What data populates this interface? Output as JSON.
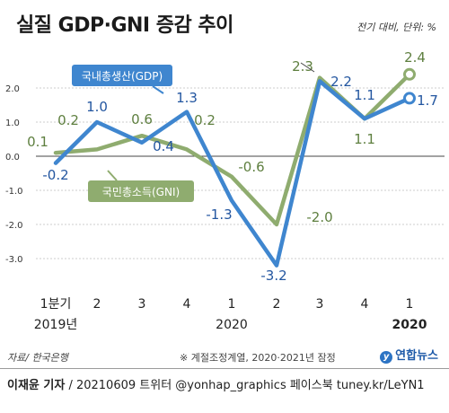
{
  "title": "실질 GDP·GNI 증감 추이",
  "unit_note": "전기 대비, 단위: %",
  "source": "자료/ 한국은행",
  "footnote": "※ 계절조정계열, 2020·2021년 잠정",
  "brand": "연합뉴스",
  "brand_mark": "y",
  "credit": {
    "author": "이재윤 기자",
    "rest": " / 20210609   트위터 @yonhap_graphics  페이스북 tuney.kr/LeYN1"
  },
  "chart_data": {
    "type": "line",
    "categories": [
      "1분기",
      "2",
      "3",
      "4",
      "1",
      "2",
      "3",
      "4",
      "1"
    ],
    "year_labels": [
      "2019년",
      "2020",
      "2020"
    ],
    "ylim": [
      -3.5,
      2.6
    ],
    "yticks": [
      "2.0",
      "1.0",
      "0.0",
      "-1.0",
      "-2.0",
      "-3.0"
    ],
    "ytick_values": [
      2,
      1,
      0,
      -1,
      -2,
      -3
    ],
    "grid": true,
    "series": [
      {
        "name": "국내총생산(GDP)",
        "color": "#3f86cf",
        "values": [
          -0.2,
          1.0,
          0.4,
          1.3,
          -1.3,
          -3.2,
          2.2,
          1.1,
          1.7
        ],
        "labels": [
          "-0.2",
          "1.0",
          "0.4",
          "1.3",
          "-1.3",
          "-3.2",
          "2.2",
          "1.1",
          "1.7"
        ]
      },
      {
        "name": "국민총소득(GNI)",
        "color": "#8fac6f",
        "values": [
          0.1,
          0.2,
          0.6,
          0.2,
          -0.6,
          -2.0,
          2.3,
          1.1,
          2.4
        ],
        "labels": [
          "0.1",
          "0.2",
          "0.6",
          "0.2",
          "-0.6",
          "-2.0",
          "2.3",
          "1.1",
          "2.4"
        ]
      }
    ]
  }
}
